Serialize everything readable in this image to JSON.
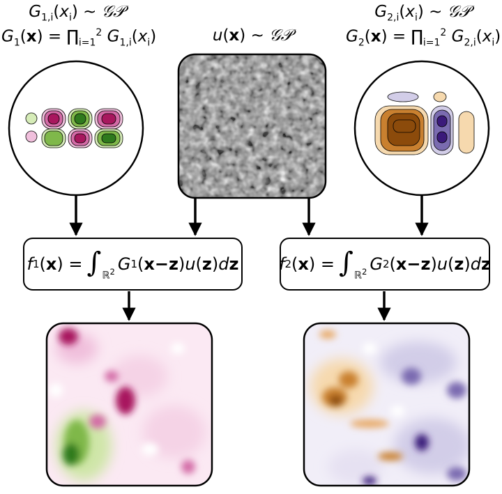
{
  "labels": {
    "g1_prior": {
      "lhs": "G",
      "sub": "1,i",
      "arg": "x",
      "argsub": "i",
      "rel": "∼",
      "gp": "𝒢𝒫"
    },
    "g1_def": {
      "lhs": "G",
      "sub": "1",
      "arg": "x",
      "prod": "∏",
      "prod_sub": "i=1",
      "prod_sup": "2",
      "factor": "G",
      "factor_sub": "1,i",
      "factor_arg": "x",
      "factor_argsub": "i"
    },
    "u_prior": {
      "lhs": "u",
      "arg": "x",
      "rel": "∼",
      "gp": "𝒢𝒫"
    },
    "g2_prior": {
      "lhs": "G",
      "sub": "2,i",
      "arg": "x",
      "argsub": "i",
      "rel": "∼",
      "gp": "𝒢𝒫"
    },
    "g2_def": {
      "lhs": "G",
      "sub": "2",
      "arg": "x",
      "prod": "∏",
      "prod_sub": "i=1",
      "prod_sup": "2",
      "factor": "G",
      "factor_sub": "2,i",
      "factor_arg": "x",
      "factor_argsub": "i"
    }
  },
  "equations": {
    "f1": {
      "f": "f",
      "fsub": "1",
      "x": "x",
      "eq": "=",
      "integral": "∫",
      "domain": "ℝ",
      "domain_sup": "2",
      "G": "G",
      "Gsub": "1",
      "xz": "x−z",
      "u": "u",
      "z": "z",
      "d": "d",
      "dz": "z"
    },
    "f2": {
      "f": "f",
      "fsub": "2",
      "x": "x",
      "eq": "=",
      "integral": "∫",
      "domain": "ℝ",
      "domain_sup": "2",
      "G": "G",
      "Gsub": "2",
      "xz": "x−z",
      "u": "u",
      "z": "z",
      "d": "d",
      "dz": "z"
    }
  },
  "colors": {
    "pink_dark": "#a8175e",
    "pink_mid": "#d36aa6",
    "pink_light": "#f0bfdc",
    "green_dark": "#2f7a1d",
    "green_mid": "#7fb84a",
    "green_light": "#d6ecb8",
    "orange_dark": "#8c4b0b",
    "orange_mid": "#c9802f",
    "orange_light": "#f6d9ae",
    "purple_dark": "#3b1a7a",
    "purple_mid": "#7a6bb0",
    "purple_light": "#d2cde8",
    "arrow": "#000000"
  },
  "icons": [
    "g1-kernel-circle",
    "white-noise-square",
    "g2-kernel-circle",
    "f1-field-square",
    "f2-field-square"
  ]
}
